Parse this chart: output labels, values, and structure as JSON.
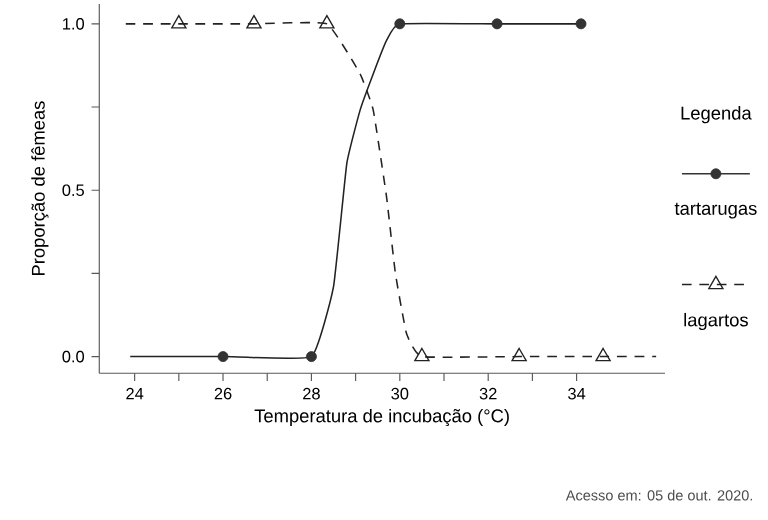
{
  "chart_data": {
    "type": "line",
    "xlabel": "Temperatura de incubação (°C)",
    "ylabel": "Proporção de fêmeas",
    "legend_title": "Legenda",
    "xlim": [
      23.2,
      36
    ],
    "ylim": [
      -0.05,
      1.06
    ],
    "xticks": [
      24,
      {
        "value": 25,
        "label": null
      },
      26,
      {
        "value": 27,
        "label": null
      },
      28,
      {
        "value": 29,
        "label": null
      },
      30,
      {
        "value": 31,
        "label": null
      },
      32,
      {
        "value": 33,
        "label": null
      },
      34
    ],
    "yticks": [
      {
        "value": 0,
        "label": "0.0"
      },
      {
        "value": 0.25,
        "label": null
      },
      {
        "value": 0.5,
        "label": "0.5"
      },
      {
        "value": 0.75,
        "label": null
      },
      {
        "value": 1,
        "label": "1.0"
      }
    ],
    "grid": false,
    "legend": "right",
    "series": [
      {
        "color": "#222222",
        "line_style": "solid",
        "x": [
          23.9,
          26,
          28,
          28.5,
          28.8,
          29.1,
          29.4,
          29.7,
          30,
          32.2,
          34.1
        ],
        "values": [
          0,
          0,
          0,
          0.21,
          0.58,
          0.74,
          0.85,
          0.95,
          1,
          1,
          1
        ]
      },
      {
        "type": "scatter",
        "name": "tartarugas",
        "color": "#333333",
        "marker": "circle",
        "x": [
          26,
          28,
          30,
          32.2,
          34.1
        ],
        "values": [
          0,
          0,
          1,
          1,
          1
        ]
      },
      {
        "color": "#222222",
        "line_style": "dashed",
        "x": [
          23.8,
          25,
          26.7,
          28.35,
          29.1,
          29.4,
          29.7,
          29.9,
          30.15,
          30.5,
          32.7,
          34.6,
          35.8
        ],
        "values": [
          1,
          1,
          1,
          1,
          0.85,
          0.74,
          0.48,
          0.25,
          0.07,
          0,
          0,
          0,
          0
        ]
      },
      {
        "type": "scatter",
        "name": "lagartos",
        "color": "#222222",
        "marker": "triangle",
        "x": [
          25,
          26.7,
          28.35,
          30.5,
          32.7,
          34.6
        ],
        "values": [
          1,
          1,
          1,
          0,
          0,
          0
        ]
      }
    ],
    "annotations": [
      "Acesso em: 05 de out. 2020."
    ]
  }
}
